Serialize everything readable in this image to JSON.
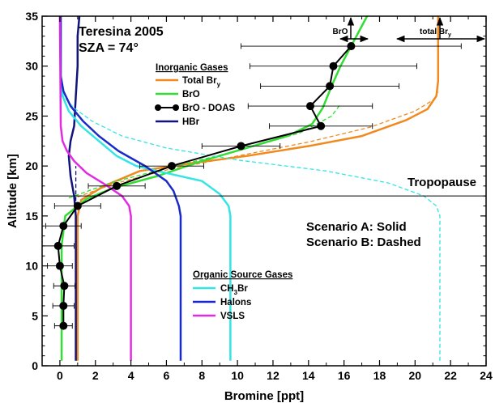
{
  "chart_data": {
    "type": "line",
    "title": "Teresina 2005",
    "subtitle": "SZA = 74°",
    "xlabel": "Bromine  [ppt]",
    "ylabel": "Altitude  [km]",
    "xlim": [
      -1,
      24
    ],
    "ylim": [
      0,
      35
    ],
    "xticks": [
      "0",
      "2",
      "4",
      "6",
      "8",
      "10",
      "12",
      "14",
      "16",
      "18",
      "20",
      "22",
      "24"
    ],
    "yticks": [
      "0",
      "5",
      "10",
      "15",
      "20",
      "25",
      "30",
      "35"
    ],
    "grid": false,
    "tropopause": {
      "label": "Tropopause",
      "altitude": 17
    },
    "scenarios": {
      "a": "Scenario A:  Solid",
      "b": "Scenario B:  Dashed"
    },
    "arrow_labels": {
      "bro": "BrO",
      "total_bry_prefix": "total Br",
      "total_bry_sub": "y"
    },
    "legends": {
      "inorganic": {
        "title": "Inorganic Gases",
        "entries": [
          {
            "label": "Total Br",
            "sub": "y",
            "color": "#f08a1e"
          },
          {
            "label": "BrO",
            "color": "#33dd33"
          },
          {
            "label": "BrO - DOAS",
            "color": "#000000"
          },
          {
            "label": "HBr",
            "color": "#13137d"
          }
        ]
      },
      "organic": {
        "title": "Organic Source Gases",
        "entries": [
          {
            "label": "CH",
            "sub": "3",
            "label_tail": "Br",
            "color": "#33e5e5"
          },
          {
            "label": "Halons",
            "color": "#1a2ac8"
          },
          {
            "label": "VSLS",
            "color": "#e22ce2"
          }
        ]
      }
    },
    "series": [
      {
        "name": "Total Bry",
        "scenario": "A",
        "color": "#f08a1e",
        "dash": false,
        "points": [
          [
            1.0,
            0.5
          ],
          [
            1.0,
            5
          ],
          [
            1.0,
            10
          ],
          [
            1.0,
            15
          ],
          [
            1.2,
            16.6
          ],
          [
            2.5,
            18
          ],
          [
            4.5,
            19.5
          ],
          [
            7.5,
            20.3
          ],
          [
            10.5,
            21
          ],
          [
            14,
            22
          ],
          [
            17,
            23
          ],
          [
            19.5,
            24.6
          ],
          [
            20.7,
            25.7
          ],
          [
            21.2,
            27
          ],
          [
            21.3,
            28.5
          ],
          [
            21.3,
            30
          ],
          [
            21.3,
            35
          ]
        ]
      },
      {
        "name": "Total Bry",
        "scenario": "B",
        "color": "#f08a1e",
        "dash": true,
        "points": [
          [
            1.0,
            16.9
          ],
          [
            3,
            18.2
          ],
          [
            6,
            19.6
          ],
          [
            10,
            21
          ],
          [
            14,
            22.4
          ],
          [
            17.5,
            23.9
          ],
          [
            20,
            25.5
          ],
          [
            21.1,
            26.7
          ],
          [
            21.3,
            27.5
          ]
        ]
      },
      {
        "name": "BrO",
        "scenario": "A",
        "color": "#33dd33",
        "dash": false,
        "points": [
          [
            0.1,
            0.5
          ],
          [
            0.1,
            4
          ],
          [
            0.1,
            8
          ],
          [
            0.1,
            12
          ],
          [
            0.3,
            15
          ],
          [
            1.5,
            16.7
          ],
          [
            3,
            17.8
          ],
          [
            5.5,
            19
          ],
          [
            8,
            20.5
          ],
          [
            10.5,
            21.8
          ],
          [
            12.8,
            23
          ],
          [
            14.2,
            24.2
          ],
          [
            14.8,
            25.8
          ],
          [
            15.3,
            28
          ],
          [
            15.8,
            30
          ],
          [
            16.4,
            32
          ],
          [
            17.3,
            35
          ]
        ]
      },
      {
        "name": "BrO",
        "scenario": "B",
        "color": "#33dd33",
        "dash": true,
        "points": [
          [
            0.5,
            16.8
          ],
          [
            3,
            18.4
          ],
          [
            6.5,
            20
          ],
          [
            10,
            21.5
          ],
          [
            13.5,
            23.3
          ],
          [
            15.3,
            25
          ],
          [
            15.8,
            26.2
          ]
        ]
      },
      {
        "name": "HBr",
        "scenario": "A",
        "color": "#13137d",
        "dash": false,
        "points": [
          [
            0.9,
            0.5
          ],
          [
            0.9,
            10
          ],
          [
            0.9,
            15
          ],
          [
            0.8,
            17
          ],
          [
            0.6,
            19
          ],
          [
            0.5,
            21
          ],
          [
            0.6,
            22.5
          ],
          [
            0.8,
            24
          ],
          [
            0.9,
            27
          ],
          [
            1.0,
            30
          ],
          [
            1.0,
            33
          ],
          [
            1.1,
            35
          ]
        ]
      },
      {
        "name": "HBr",
        "scenario": "B",
        "color": "#13137d",
        "dash": true,
        "points": [
          [
            0.9,
            16.5
          ],
          [
            0.9,
            18.5
          ],
          [
            0.9,
            20
          ]
        ]
      },
      {
        "name": "CH3Br",
        "scenario": "A",
        "color": "#33e5e5",
        "dash": false,
        "points": [
          [
            9.6,
            0.5
          ],
          [
            9.6,
            5
          ],
          [
            9.6,
            10
          ],
          [
            9.6,
            15
          ],
          [
            9.5,
            16
          ],
          [
            9,
            17.2
          ],
          [
            8,
            18.5
          ],
          [
            6,
            19.3
          ],
          [
            4.3,
            20
          ],
          [
            3.2,
            21
          ],
          [
            2.2,
            22.5
          ],
          [
            1.2,
            24
          ],
          [
            0.5,
            25.5
          ],
          [
            0.15,
            27
          ],
          [
            0.05,
            28.5
          ],
          [
            0.05,
            35
          ]
        ]
      },
      {
        "name": "CH3Br",
        "scenario": "B",
        "color": "#33e5e5",
        "dash": true,
        "points": [
          [
            21.4,
            0.5
          ],
          [
            21.4,
            10
          ],
          [
            21.4,
            15
          ],
          [
            21.2,
            16
          ],
          [
            20.5,
            17
          ],
          [
            18.5,
            18.3
          ],
          [
            15,
            19.5
          ],
          [
            10,
            20.6
          ],
          [
            6,
            21.8
          ],
          [
            3.5,
            23
          ],
          [
            1.8,
            24.5
          ],
          [
            0.8,
            25.8
          ],
          [
            0.2,
            27
          ],
          [
            0.05,
            28.5
          ]
        ]
      },
      {
        "name": "Halons",
        "scenario": "A",
        "color": "#1a2ac8",
        "dash": false,
        "points": [
          [
            6.8,
            0.5
          ],
          [
            6.8,
            5
          ],
          [
            6.8,
            10
          ],
          [
            6.8,
            15
          ],
          [
            6.7,
            16
          ],
          [
            6.4,
            17.5
          ],
          [
            6,
            18.5
          ],
          [
            4.8,
            20
          ],
          [
            3.3,
            21.5
          ],
          [
            2.2,
            23
          ],
          [
            1.3,
            24.5
          ],
          [
            0.6,
            26
          ],
          [
            0.2,
            27.5
          ],
          [
            0.05,
            29
          ],
          [
            0.05,
            35
          ]
        ]
      },
      {
        "name": "VSLS",
        "scenario": "A",
        "color": "#e22ce2",
        "dash": false,
        "points": [
          [
            4.0,
            0.5
          ],
          [
            4.0,
            5
          ],
          [
            4.0,
            10
          ],
          [
            4.0,
            15
          ],
          [
            3.9,
            16
          ],
          [
            3.5,
            17
          ],
          [
            2.5,
            18.2
          ],
          [
            1.5,
            19.3
          ],
          [
            0.8,
            20.5
          ],
          [
            0.4,
            21.5
          ],
          [
            0.15,
            22.5
          ],
          [
            0.05,
            24
          ],
          [
            0.0,
            35
          ]
        ]
      }
    ],
    "doas": {
      "name": "BrO - DOAS",
      "color": "#000000",
      "points": [
        {
          "x": 0.2,
          "y": 4,
          "xerr": 0.5
        },
        {
          "x": 0.2,
          "y": 6,
          "xerr": 0.6
        },
        {
          "x": 0.25,
          "y": 8,
          "xerr": 0.6
        },
        {
          "x": 0.0,
          "y": 10,
          "xerr": 0.7
        },
        {
          "x": -0.1,
          "y": 12,
          "xerr": 0.9
        },
        {
          "x": 0.2,
          "y": 14,
          "xerr": 1.0
        },
        {
          "x": 1.0,
          "y": 16,
          "xerr": 1.3
        },
        {
          "x": 3.2,
          "y": 18,
          "xerr": 1.6
        },
        {
          "x": 6.3,
          "y": 20,
          "xerr": 1.8
        },
        {
          "x": 10.2,
          "y": 22,
          "xerr": 2.2
        },
        {
          "x": 14.7,
          "y": 24,
          "xerr": 2.9
        },
        {
          "x": 14.1,
          "y": 26,
          "xerr": 3.5
        },
        {
          "x": 15.2,
          "y": 28,
          "xerr": 3.9
        },
        {
          "x": 15.4,
          "y": 30,
          "xerr": 4.7
        },
        {
          "x": 16.4,
          "y": 32,
          "xerr": 6.2
        }
      ]
    }
  }
}
